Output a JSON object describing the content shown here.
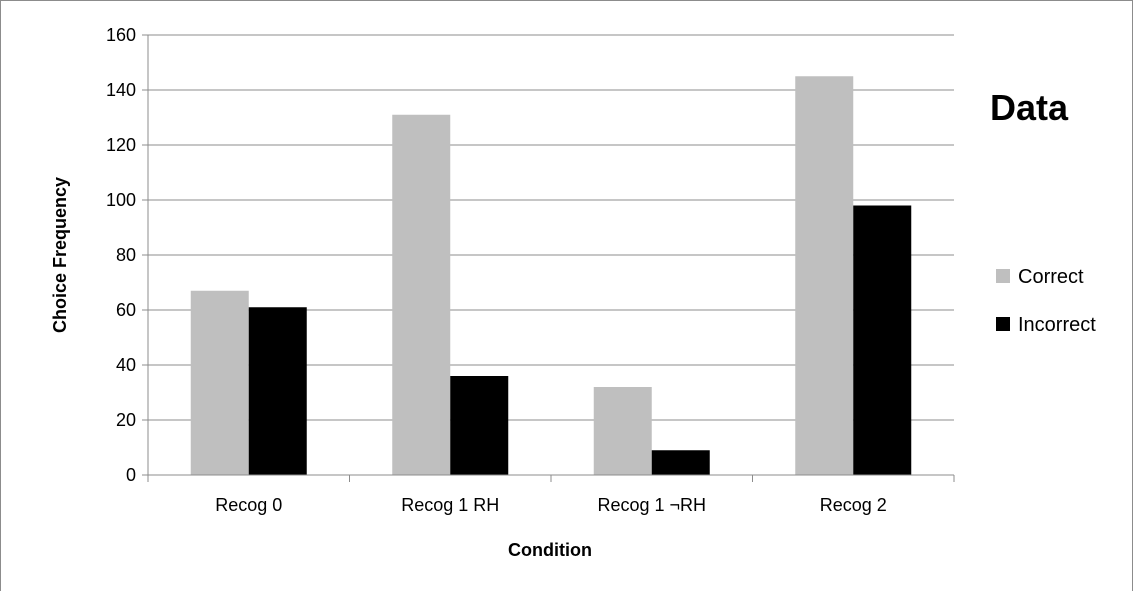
{
  "chart_data": {
    "type": "bar",
    "title": "",
    "overlay_text": "Data",
    "xlabel": "Condition",
    "ylabel": "Choice Frequency",
    "categories": [
      "Recog 0",
      "Recog 1 RH",
      "Recog 1 ¬RH",
      "Recog 2"
    ],
    "series": [
      {
        "name": "Correct",
        "values": [
          67,
          131,
          32,
          145
        ],
        "color": "#bfbfbf"
      },
      {
        "name": "Incorrect",
        "values": [
          61,
          36,
          9,
          98
        ],
        "color": "#000000"
      }
    ],
    "ylim": [
      0,
      160
    ],
    "yticks": [
      0,
      20,
      40,
      60,
      80,
      100,
      120,
      140,
      160
    ],
    "grid": true,
    "legend_position": "right"
  }
}
